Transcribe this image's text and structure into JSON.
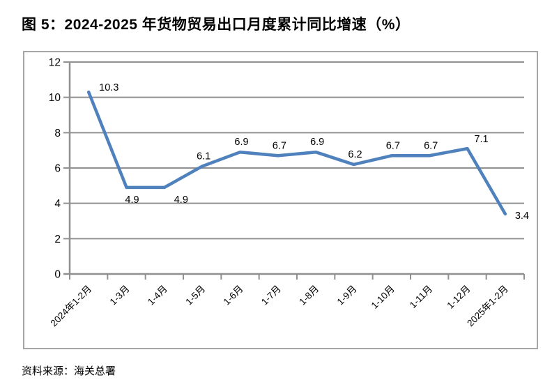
{
  "title": "图 5：2024-2025 年货物贸易出口月度累计同比增速（%）",
  "source": "资料来源：海关总署",
  "colors": {
    "line": "#4f81bd",
    "gridline": "#909090",
    "axis": "#909090",
    "frame_border": "#a6a6a6",
    "text": "#000000"
  },
  "chart_data": {
    "type": "line",
    "title": "图 5：2024-2025 年货物贸易出口月度累计同比增速（%）",
    "categories": [
      "2024年1-2月",
      "1-3月",
      "1-4月",
      "1-5月",
      "1-6月",
      "1-7月",
      "1-8月",
      "1-9月",
      "1-10月",
      "1-11月",
      "1-12月",
      "2025年1-2月"
    ],
    "values": [
      10.3,
      4.9,
      4.9,
      6.1,
      6.9,
      6.7,
      6.9,
      6.2,
      6.7,
      6.7,
      7.1,
      3.4
    ],
    "xlabel": "",
    "ylabel": "",
    "ylim": [
      0,
      12
    ],
    "yticks": [
      0,
      2,
      4,
      6,
      8,
      10,
      12
    ],
    "grid": true,
    "legend": "none",
    "data_labels": true,
    "label_positions": [
      "right-above",
      "below",
      "below-right",
      "above",
      "above",
      "above",
      "above",
      "above",
      "above",
      "above",
      "above-right",
      "right"
    ]
  }
}
